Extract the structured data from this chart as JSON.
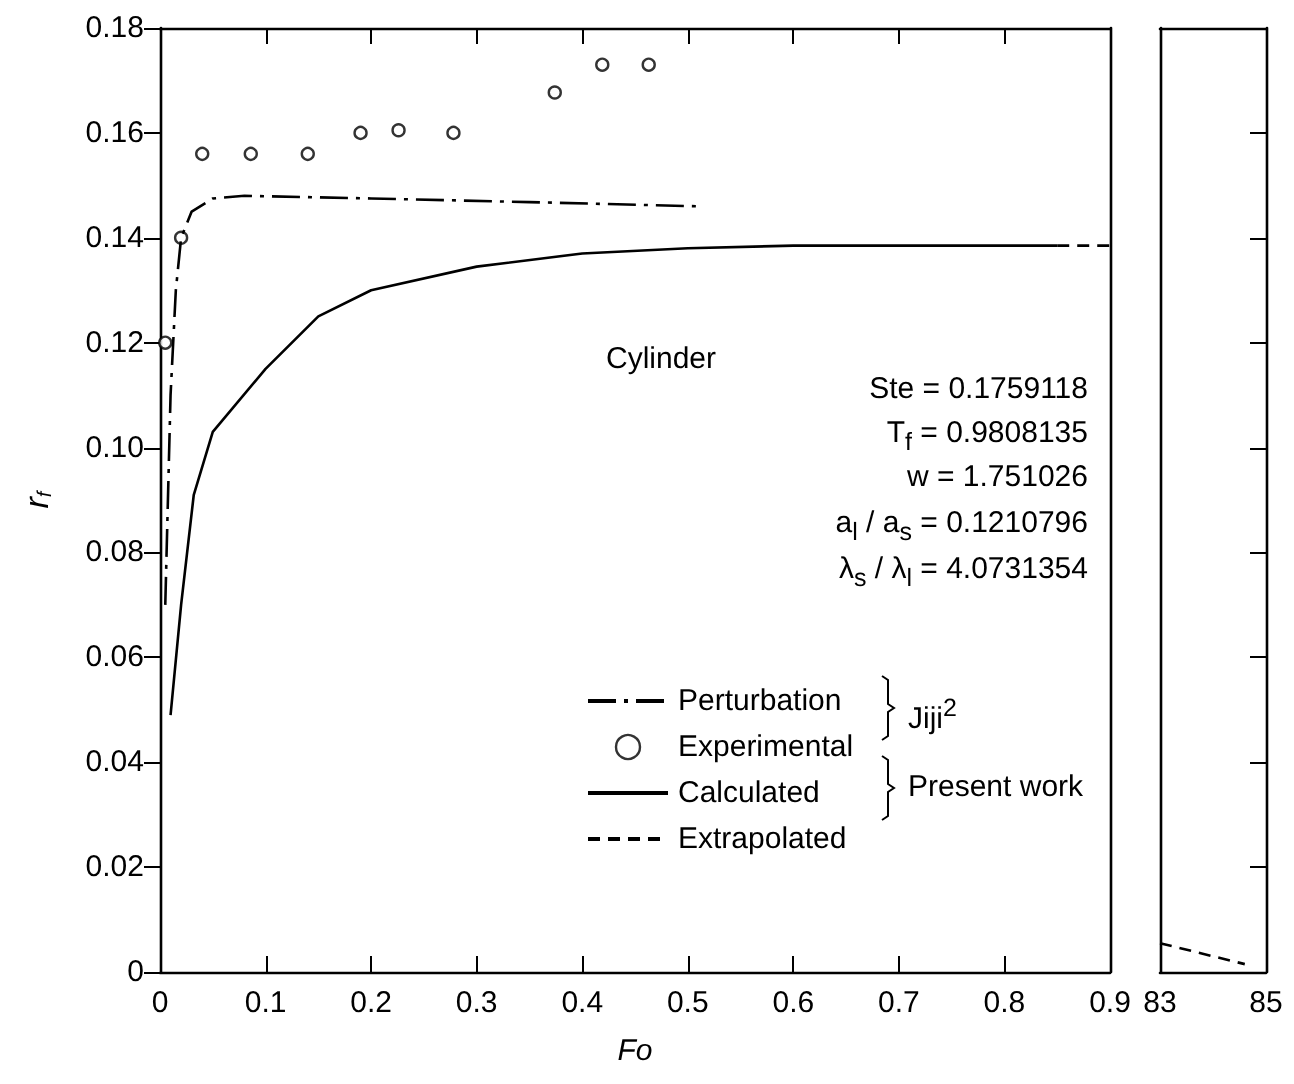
{
  "chart_data": [
    {
      "type": "line",
      "xlabel": "Fo",
      "ylabel": "r$_{f}$",
      "xlim": [
        0,
        0.9
      ],
      "xticks": [
        0,
        0.1,
        0.2,
        0.3,
        0.4,
        0.5,
        0.6,
        0.7,
        0.8,
        0.9
      ],
      "ylim": [
        0,
        0.18
      ],
      "yticks": [
        0,
        0.02,
        0.04,
        0.06,
        0.08,
        {
          "value": 0.1,
          "label": "0.10"
        },
        0.12,
        0.14,
        0.16,
        0.18
      ],
      "tick_labels": "xy",
      "grid": false,
      "legend": "right",
      "annotations": [
        "Cylinder",
        "Ste = 0.1759118",
        "T$_{f}$ = 0.9808135",
        "w = 1.751026",
        "a$_{l}$ / a$_{s}$ = 0.1210796",
        "λ$_{s}$ / λ$_{l}$ = 4.0731354",
        "Jiji$^{2}$",
        "Present work"
      ],
      "series": [
        {
          "name": "Perturbation",
          "type": "line",
          "color": "#000000",
          "line_style": "dashdot",
          "marker": "none",
          "x": [
            0.005,
            0.01,
            0.015,
            0.02,
            0.03,
            0.05,
            0.08,
            0.2,
            0.35,
            0.51
          ],
          "values": [
            0.07,
            0.11,
            0.13,
            0.14,
            0.145,
            0.1475,
            0.148,
            0.1475,
            0.1468,
            0.146
          ]
        },
        {
          "name": "Experimental",
          "type": "scatter",
          "color": "#000000",
          "marker": "circle",
          "x": [
            0.005,
            0.02,
            0.04,
            0.086,
            0.14,
            0.19,
            0.226,
            0.278,
            0.374,
            0.419,
            0.463
          ],
          "values": [
            0.12,
            0.14,
            0.156,
            0.156,
            0.156,
            0.16,
            0.1605,
            0.16,
            0.1677,
            0.173,
            0.173
          ]
        },
        {
          "name": "Calculated",
          "type": "line",
          "color": "#000000",
          "line_style": "solid",
          "marker": "none",
          "x": [
            0.01,
            0.02,
            0.032,
            0.05,
            0.1,
            0.15,
            0.2,
            0.3,
            0.4,
            0.5,
            0.6,
            0.85
          ],
          "values": [
            0.049,
            0.07,
            0.091,
            0.103,
            0.115,
            0.125,
            0.13,
            0.1345,
            0.137,
            0.138,
            0.1385,
            0.1385
          ]
        },
        {
          "name": "Extrapolated",
          "type": "line",
          "color": "#000000",
          "line_style": "dashed",
          "marker": "none",
          "x": [
            0.85,
            0.9
          ],
          "values": [
            0.1385,
            0.1385
          ]
        }
      ]
    },
    {
      "type": "line",
      "xlim": [
        83,
        85
      ],
      "xticks": [
        83,
        85
      ],
      "ylim": [
        0,
        0.18
      ],
      "yticks": [
        0,
        0.02,
        0.04,
        0.06,
        0.08,
        0.1,
        0.12,
        0.14,
        0.16,
        0.18
      ],
      "tick_labels": "x",
      "grid": false,
      "series": [
        {
          "type": "line",
          "color": "#000000",
          "line_style": "dashed",
          "marker": "none",
          "x": [
            83,
            84.6
          ],
          "values": [
            0.0055,
            0.0015
          ]
        }
      ]
    }
  ]
}
